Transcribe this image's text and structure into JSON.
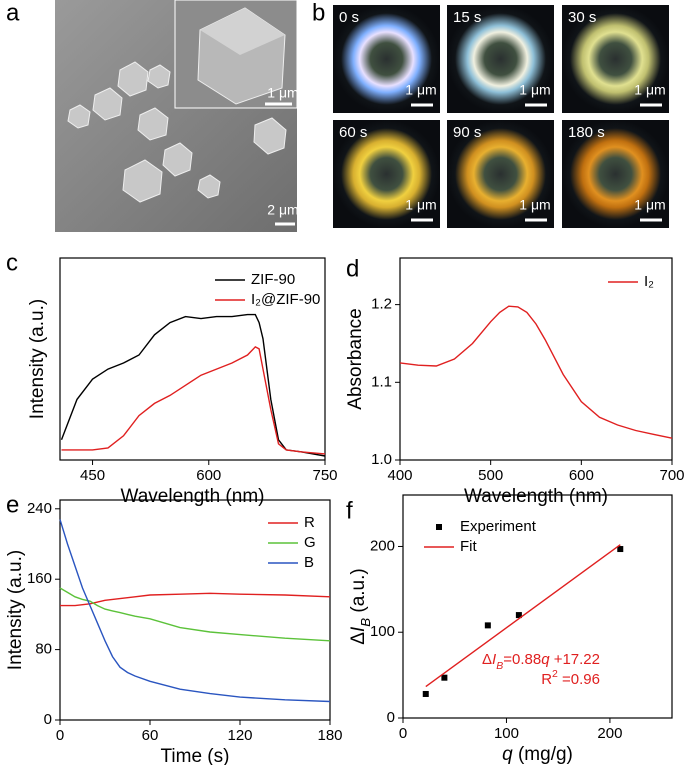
{
  "figure": {
    "panels": [
      {
        "label": "a",
        "inset_scale": "1 μm",
        "scale": "2 μm"
      },
      {
        "label": "b",
        "frames": [
          {
            "time": "0 s",
            "scale": "1 μm"
          },
          {
            "time": "15 s",
            "scale": "1 μm"
          },
          {
            "time": "30 s",
            "scale": "1 μm"
          },
          {
            "time": "60 s",
            "scale": "1 μm"
          },
          {
            "time": "90 s",
            "scale": "1 μm"
          },
          {
            "time": "180 s",
            "scale": "1 μm"
          }
        ]
      }
    ]
  },
  "chart_data": [
    {
      "type": "line",
      "panel": "c",
      "xlabel": "Wavelength (nm)",
      "ylabel": "Intensity (a.u.)",
      "xlim": [
        408,
        750
      ],
      "ylim": [
        0,
        1
      ],
      "xticks": [
        450,
        600,
        750
      ],
      "x": [
        410,
        430,
        450,
        470,
        490,
        510,
        530,
        550,
        570,
        590,
        610,
        630,
        650,
        660,
        665,
        670,
        675,
        680,
        690,
        700,
        720,
        750
      ],
      "series": [
        {
          "name": "ZIF-90",
          "color": "#000000",
          "values": [
            0.1,
            0.3,
            0.4,
            0.45,
            0.48,
            0.52,
            0.62,
            0.68,
            0.71,
            0.7,
            0.71,
            0.71,
            0.72,
            0.72,
            0.68,
            0.6,
            0.45,
            0.3,
            0.1,
            0.05,
            0.04,
            0.02
          ]
        },
        {
          "name": "I₂@ZIF-90",
          "color": "#e02020",
          "values": [
            0.05,
            0.05,
            0.05,
            0.06,
            0.12,
            0.22,
            0.28,
            0.32,
            0.37,
            0.42,
            0.45,
            0.48,
            0.52,
            0.56,
            0.55,
            0.45,
            0.35,
            0.25,
            0.08,
            0.05,
            0.04,
            0.03
          ]
        }
      ]
    },
    {
      "type": "line",
      "panel": "d",
      "xlabel": "Wavelength (nm)",
      "ylabel": "Absorbance",
      "xlim": [
        400,
        700
      ],
      "ylim": [
        1.0,
        1.26
      ],
      "xticks": [
        400,
        500,
        600,
        700
      ],
      "yticks": [
        {
          "value": 1.0,
          "label": "1.0"
        },
        1.1,
        1.2
      ],
      "x": [
        400,
        420,
        440,
        460,
        480,
        500,
        510,
        520,
        530,
        540,
        550,
        560,
        580,
        600,
        620,
        640,
        660,
        680,
        700
      ],
      "series": [
        {
          "name": "I₂",
          "color": "#e02020",
          "values": [
            1.125,
            1.122,
            1.121,
            1.13,
            1.15,
            1.178,
            1.19,
            1.198,
            1.197,
            1.19,
            1.175,
            1.155,
            1.11,
            1.075,
            1.055,
            1.045,
            1.038,
            1.033,
            1.028
          ]
        }
      ]
    },
    {
      "type": "line",
      "panel": "e",
      "xlabel": "Time (s)",
      "ylabel": "Intensity (a.u.)",
      "xlim": [
        0,
        180
      ],
      "ylim": [
        0,
        250
      ],
      "xticks": [
        0,
        60,
        120,
        180
      ],
      "yticks": [
        0,
        80,
        160,
        240
      ],
      "x": [
        0,
        5,
        10,
        15,
        20,
        25,
        30,
        35,
        40,
        45,
        50,
        60,
        80,
        100,
        120,
        150,
        180
      ],
      "series": [
        {
          "name": "R",
          "color": "#e02020",
          "values": [
            130,
            130,
            130,
            131,
            132,
            134,
            136,
            137,
            138,
            139,
            140,
            142,
            143,
            144,
            143,
            142,
            140
          ]
        },
        {
          "name": "G",
          "color": "#5cc23a",
          "values": [
            150,
            145,
            140,
            137,
            135,
            130,
            126,
            124,
            122,
            120,
            118,
            115,
            105,
            100,
            97,
            93,
            90
          ]
        },
        {
          "name": "B",
          "color": "#2a55c0",
          "values": [
            228,
            200,
            175,
            150,
            130,
            110,
            90,
            72,
            60,
            54,
            50,
            44,
            35,
            30,
            26,
            23,
            21
          ]
        }
      ]
    },
    {
      "type": "scatter",
      "panel": "f",
      "xlabel": [
        "q",
        " (mg/g)"
      ],
      "ylabel": [
        "Δ",
        "I",
        "B",
        " (a.u.)"
      ],
      "xlim": [
        0,
        260
      ],
      "ylim": [
        0,
        260
      ],
      "xticks": [
        0,
        100,
        200
      ],
      "yticks": [
        0,
        100,
        200
      ],
      "annotations": [
        [
          "Δ",
          "I",
          "B",
          "=0.88",
          "q",
          " +17.22"
        ],
        [
          "R",
          "2",
          " =0.96"
        ]
      ],
      "series": [
        {
          "name": "Experiment",
          "color": "#000000",
          "mode": "markers",
          "x": [
            22,
            40,
            82,
            112,
            210
          ],
          "values": [
            28,
            47,
            108,
            120,
            197
          ]
        },
        {
          "name": "Fit",
          "color": "#e02020",
          "mode": "line",
          "x": [
            22,
            210
          ],
          "values": [
            36.58,
            202.02
          ]
        }
      ]
    }
  ]
}
